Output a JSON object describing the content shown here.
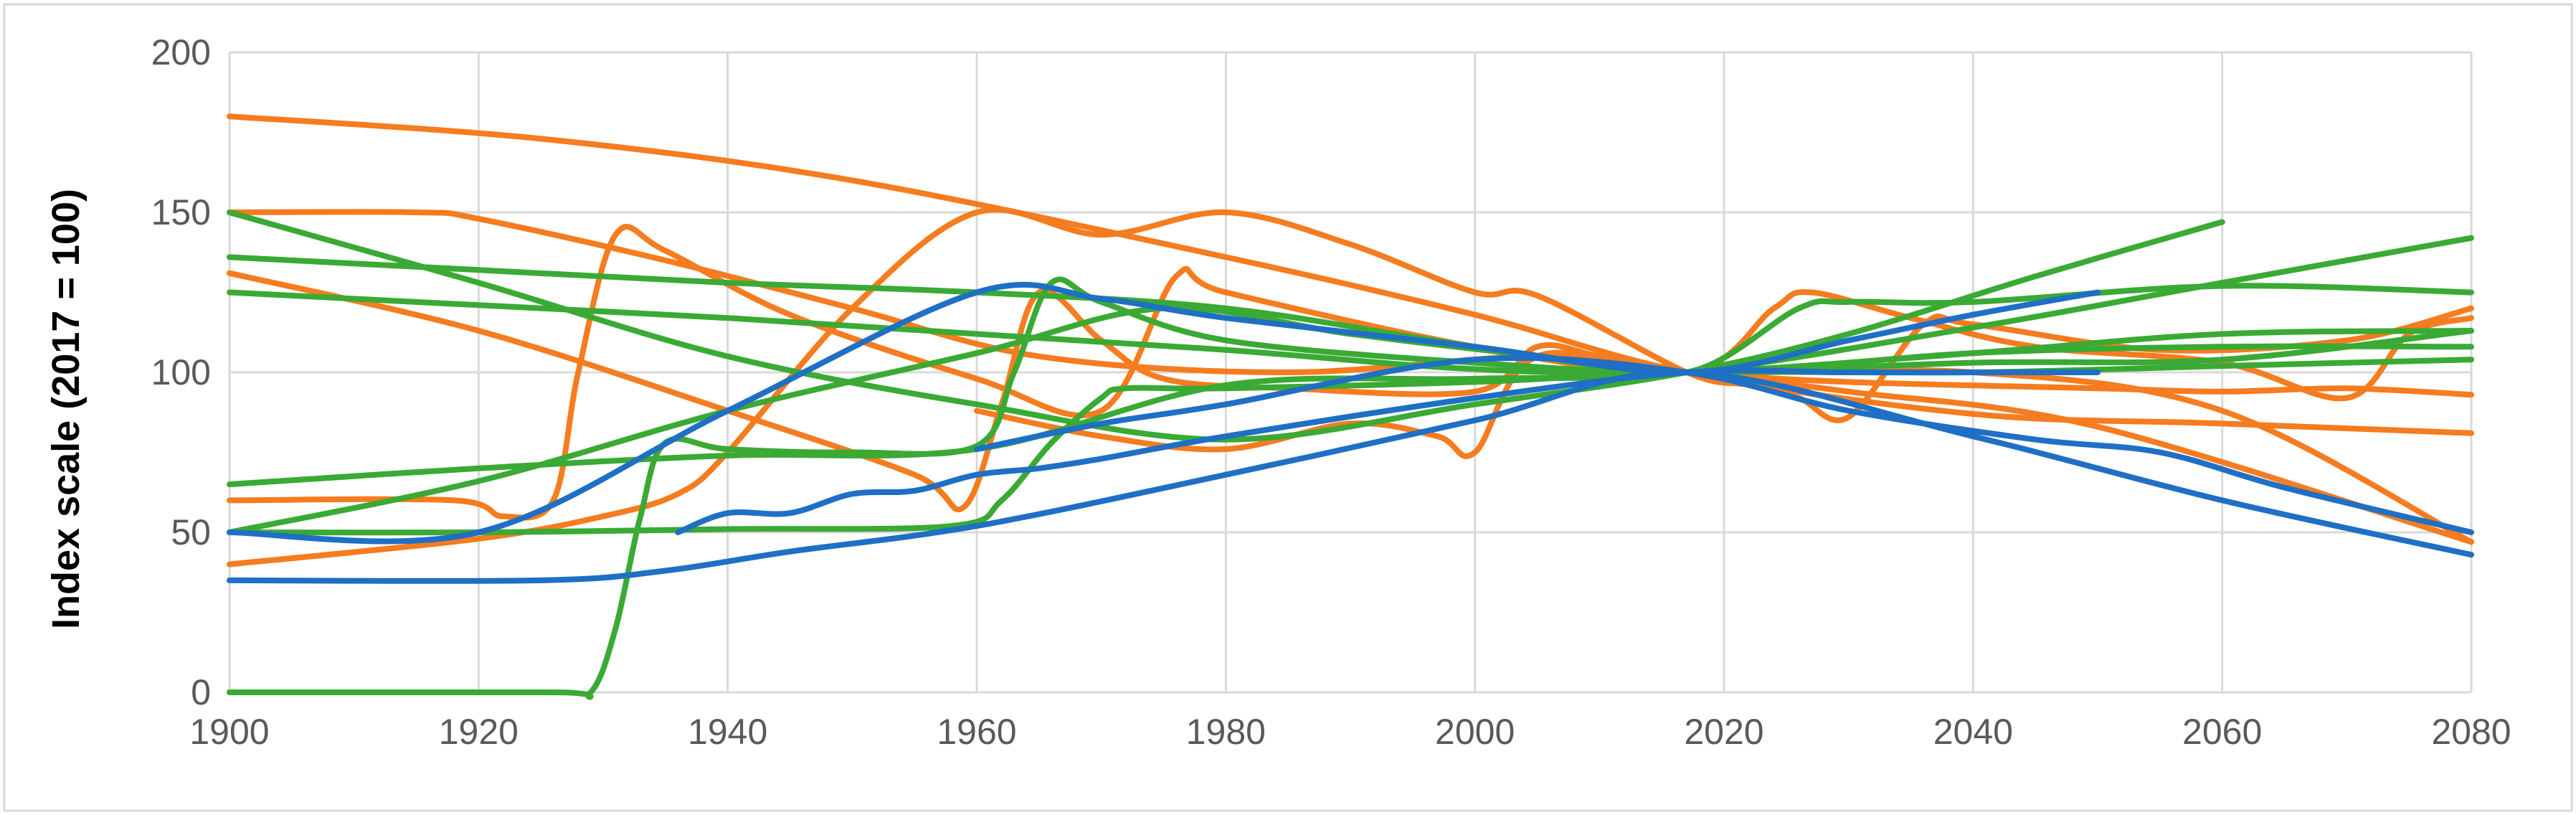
{
  "chart_data": {
    "type": "line",
    "title": "",
    "xlabel": "",
    "ylabel": "Index scale (2017 = 100)",
    "xlim": [
      1900,
      2080
    ],
    "ylim": [
      0,
      200
    ],
    "x_ticks": [
      1900,
      1920,
      1940,
      1960,
      1980,
      2000,
      2020,
      2040,
      2060,
      2080
    ],
    "y_ticks": [
      0,
      50,
      100,
      150,
      200
    ],
    "grid": true,
    "legend": "none",
    "colors": {
      "blue": "#1f6fc5",
      "green": "#3aaa35",
      "orange": "#f57c1f"
    },
    "series": [
      {
        "color": "orange",
        "points": [
          [
            1900,
            180
          ],
          [
            1925,
            173
          ],
          [
            1950,
            160
          ],
          [
            1980,
            136
          ],
          [
            2000,
            118
          ],
          [
            2017,
            100
          ],
          [
            2040,
            87
          ],
          [
            2060,
            84
          ],
          [
            2080,
            81
          ]
        ]
      },
      {
        "color": "orange",
        "points": [
          [
            1900,
            150
          ],
          [
            1915,
            150
          ],
          [
            1920,
            148
          ],
          [
            1935,
            135
          ],
          [
            1950,
            120
          ],
          [
            1965,
            105
          ],
          [
            1985,
            100
          ],
          [
            2005,
            105
          ],
          [
            2017,
            100
          ],
          [
            2030,
            97
          ],
          [
            2050,
            95
          ],
          [
            2060,
            94
          ],
          [
            2070,
            95
          ],
          [
            2080,
            93
          ]
        ]
      },
      {
        "color": "orange",
        "points": [
          [
            1900,
            131
          ],
          [
            1920,
            113
          ],
          [
            1940,
            88
          ],
          [
            1955,
            68
          ],
          [
            1959,
            58
          ],
          [
            1962,
            90
          ],
          [
            1965,
            125
          ],
          [
            1970,
            110
          ],
          [
            1975,
            98
          ],
          [
            1985,
            95
          ],
          [
            2000,
            94
          ],
          [
            2005,
            108
          ],
          [
            2010,
            105
          ],
          [
            2017,
            100
          ],
          [
            2030,
            94
          ],
          [
            2050,
            83
          ],
          [
            2080,
            47
          ]
        ]
      },
      {
        "color": "orange",
        "points": [
          [
            1900,
            60
          ],
          [
            1918,
            60
          ],
          [
            1922,
            55
          ],
          [
            1926,
            60
          ],
          [
            1928,
            100
          ],
          [
            1931,
            143
          ],
          [
            1935,
            138
          ],
          [
            1945,
            118
          ],
          [
            1960,
            98
          ],
          [
            1970,
            88
          ],
          [
            1976,
            130
          ],
          [
            1980,
            125
          ],
          [
            2000,
            108
          ],
          [
            2017,
            100
          ],
          [
            2024,
            120
          ],
          [
            2027,
            125
          ],
          [
            2035,
            117
          ],
          [
            2045,
            108
          ],
          [
            2060,
            103
          ],
          [
            2070,
            92
          ],
          [
            2075,
            112
          ],
          [
            2080,
            117
          ]
        ]
      },
      {
        "color": "orange",
        "points": [
          [
            1900,
            40
          ],
          [
            1920,
            48
          ],
          [
            1930,
            55
          ],
          [
            1936,
            62
          ],
          [
            1940,
            75
          ],
          [
            1950,
            120
          ],
          [
            1960,
            150
          ],
          [
            1970,
            143
          ],
          [
            1980,
            150
          ],
          [
            1990,
            140
          ],
          [
            2000,
            125
          ],
          [
            2005,
            124
          ],
          [
            2017,
            100
          ],
          [
            2022,
            96
          ],
          [
            2026,
            92
          ],
          [
            2030,
            86
          ],
          [
            2036,
            115
          ],
          [
            2040,
            115
          ],
          [
            2055,
            107
          ],
          [
            2070,
            110
          ],
          [
            2080,
            120
          ]
        ]
      },
      {
        "color": "orange",
        "points": [
          [
            1960,
            88
          ],
          [
            1970,
            80
          ],
          [
            1980,
            76
          ],
          [
            1990,
            84
          ],
          [
            1997,
            80
          ],
          [
            2000,
            75
          ],
          [
            2005,
            105
          ],
          [
            2017,
            100
          ],
          [
            2040,
            100
          ],
          [
            2060,
            88
          ],
          [
            2080,
            47
          ]
        ]
      },
      {
        "color": "green",
        "points": [
          [
            1900,
            150
          ],
          [
            1920,
            128
          ],
          [
            1940,
            105
          ],
          [
            1960,
            90
          ],
          [
            1980,
            79
          ],
          [
            2000,
            90
          ],
          [
            2017,
            100
          ],
          [
            2030,
            112
          ],
          [
            2045,
            130
          ],
          [
            2060,
            147
          ]
        ]
      },
      {
        "color": "green",
        "points": [
          [
            1900,
            136
          ],
          [
            1920,
            132
          ],
          [
            1940,
            128
          ],
          [
            1960,
            125
          ],
          [
            1980,
            120
          ],
          [
            2000,
            108
          ],
          [
            2017,
            100
          ],
          [
            2040,
            106
          ],
          [
            2060,
            108
          ],
          [
            2080,
            108
          ]
        ]
      },
      {
        "color": "green",
        "points": [
          [
            1900,
            125
          ],
          [
            1920,
            121
          ],
          [
            1940,
            117
          ],
          [
            1960,
            112
          ],
          [
            1980,
            107
          ],
          [
            2000,
            101
          ],
          [
            2017,
            100
          ],
          [
            2040,
            106
          ],
          [
            2060,
            112
          ],
          [
            2080,
            113
          ]
        ]
      },
      {
        "color": "green",
        "points": [
          [
            1900,
            65
          ],
          [
            1920,
            70
          ],
          [
            1940,
            74
          ],
          [
            1960,
            76
          ],
          [
            1980,
            96
          ],
          [
            2000,
            98
          ],
          [
            2017,
            100
          ],
          [
            2040,
            114
          ],
          [
            2060,
            128
          ],
          [
            2080,
            142
          ]
        ]
      },
      {
        "color": "green",
        "points": [
          [
            1900,
            50
          ],
          [
            1920,
            66
          ],
          [
            1940,
            88
          ],
          [
            1960,
            106
          ],
          [
            1975,
            120
          ],
          [
            1990,
            112
          ],
          [
            2005,
            105
          ],
          [
            2017,
            100
          ],
          [
            2026,
            120
          ],
          [
            2030,
            122
          ],
          [
            2040,
            122
          ],
          [
            2060,
            127
          ],
          [
            2080,
            125
          ]
        ]
      },
      {
        "color": "green",
        "points": [
          [
            1900,
            0
          ],
          [
            1926,
            0
          ],
          [
            1929,
            0
          ],
          [
            1931,
            20
          ],
          [
            1933,
            55
          ],
          [
            1935,
            78
          ],
          [
            1940,
            76
          ],
          [
            1950,
            75
          ],
          [
            1960,
            77
          ],
          [
            1963,
            100
          ],
          [
            1966,
            128
          ],
          [
            1970,
            122
          ],
          [
            1980,
            110
          ],
          [
            2000,
            103
          ],
          [
            2017,
            100
          ],
          [
            2040,
            103
          ],
          [
            2060,
            104
          ],
          [
            2080,
            113
          ]
        ]
      },
      {
        "color": "green",
        "points": [
          [
            1900,
            50
          ],
          [
            1920,
            50
          ],
          [
            1940,
            51
          ],
          [
            1958,
            52
          ],
          [
            1962,
            60
          ],
          [
            1966,
            78
          ],
          [
            1970,
            92
          ],
          [
            1972,
            95
          ],
          [
            1980,
            95
          ],
          [
            2000,
            97
          ],
          [
            2017,
            100
          ],
          [
            2040,
            100
          ],
          [
            2060,
            102
          ],
          [
            2080,
            104
          ]
        ]
      },
      {
        "color": "blue",
        "points": [
          [
            1900,
            50
          ],
          [
            1920,
            50
          ],
          [
            1940,
            88
          ],
          [
            1960,
            125
          ],
          [
            1970,
            123
          ],
          [
            1980,
            117
          ],
          [
            2000,
            108
          ],
          [
            2017,
            100
          ],
          [
            2030,
            110
          ],
          [
            2040,
            118
          ],
          [
            2050,
            125
          ]
        ]
      },
      {
        "color": "blue",
        "points": [
          [
            1900,
            35
          ],
          [
            1925,
            35
          ],
          [
            1935,
            38
          ],
          [
            1945,
            44
          ],
          [
            1960,
            52
          ],
          [
            1980,
            68
          ],
          [
            2000,
            85
          ],
          [
            2017,
            100
          ],
          [
            2040,
            80
          ],
          [
            2060,
            60
          ],
          [
            2080,
            43
          ]
        ]
      },
      {
        "color": "blue",
        "points": [
          [
            1936,
            50
          ],
          [
            1940,
            56
          ],
          [
            1945,
            56
          ],
          [
            1950,
            62
          ],
          [
            1955,
            63
          ],
          [
            1960,
            68
          ],
          [
            1965,
            70
          ],
          [
            1970,
            73
          ],
          [
            1980,
            80
          ],
          [
            2000,
            92
          ],
          [
            2017,
            100
          ],
          [
            2030,
            100
          ],
          [
            2040,
            100
          ],
          [
            2050,
            100
          ]
        ]
      },
      {
        "color": "blue",
        "points": [
          [
            1960,
            76
          ],
          [
            1970,
            84
          ],
          [
            1980,
            90
          ],
          [
            2000,
            104
          ],
          [
            2017,
            100
          ],
          [
            2030,
            88
          ],
          [
            2045,
            79
          ],
          [
            2055,
            75
          ],
          [
            2065,
            64
          ],
          [
            2080,
            50
          ]
        ]
      }
    ]
  }
}
